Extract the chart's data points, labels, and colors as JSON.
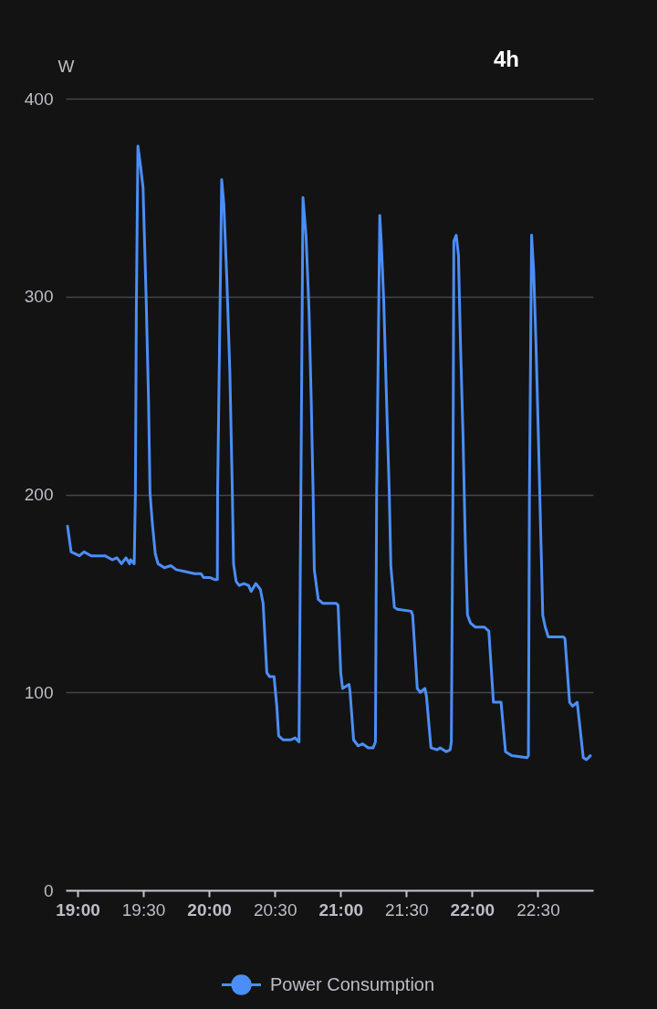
{
  "chart_data": {
    "type": "line",
    "ylabel": "W",
    "annotations": [
      "4h"
    ],
    "x": [
      18.924,
      18.951,
      19.014,
      19.049,
      19.104,
      19.208,
      19.264,
      19.299,
      19.334,
      19.368,
      19.396,
      19.403,
      19.431,
      19.44,
      19.447,
      19.459,
      19.479,
      19.498,
      19.521,
      19.54,
      19.551,
      19.568,
      19.591,
      19.612,
      19.66,
      19.709,
      19.751,
      19.82,
      19.889,
      19.938,
      19.959,
      20.008,
      20.042,
      20.063,
      20.065,
      20.096,
      20.112,
      20.135,
      20.158,
      20.177,
      20.186,
      20.206,
      20.23,
      20.265,
      20.3,
      20.32,
      20.355,
      20.39,
      20.411,
      20.439,
      20.459,
      20.494,
      20.515,
      20.529,
      20.564,
      20.619,
      20.654,
      20.684,
      20.698,
      20.714,
      20.737,
      20.76,
      20.777,
      20.791,
      20.8,
      20.83,
      20.864,
      20.911,
      20.967,
      20.981,
      21.001,
      21.015,
      21.064,
      21.071,
      21.099,
      21.133,
      21.168,
      21.21,
      21.247,
      21.265,
      21.274,
      21.298,
      21.309,
      21.328,
      21.351,
      21.37,
      21.382,
      21.409,
      21.432,
      21.537,
      21.548,
      21.583,
      21.606,
      21.641,
      21.653,
      21.687,
      21.733,
      21.757,
      21.803,
      21.833,
      21.842,
      21.854,
      21.861,
      21.879,
      21.896,
      21.912,
      21.931,
      21.946,
      21.953,
      21.965,
      21.988,
      22.023,
      22.092,
      22.127,
      22.162,
      22.22,
      22.254,
      22.301,
      22.417,
      22.428,
      22.436,
      22.452,
      22.468,
      22.486,
      22.504,
      22.521,
      22.528,
      22.537,
      22.556,
      22.579,
      22.626,
      22.695,
      22.706,
      22.741,
      22.764,
      22.799,
      22.845,
      22.869,
      22.899
    ],
    "series": [
      {
        "name": "Power Consumption",
        "color": "#4b8ef7",
        "values": [
          184,
          171,
          169,
          171,
          169,
          169,
          167,
          168,
          165,
          168,
          165,
          167,
          165,
          201,
          293,
          376,
          366,
          355,
          301,
          247,
          201,
          186,
          170,
          165,
          163,
          164,
          162,
          161,
          160,
          160,
          158,
          158,
          157,
          157,
          201,
          359,
          347,
          309,
          262,
          201,
          165,
          156,
          154,
          155,
          154,
          151,
          155,
          152,
          145,
          110,
          108,
          108,
          93,
          78,
          76,
          76,
          77,
          75,
          201,
          350,
          331,
          293,
          247,
          201,
          162,
          147,
          145,
          145,
          145,
          144,
          110,
          102,
          104,
          101,
          76,
          73,
          74,
          72,
          72,
          75,
          200,
          341,
          328,
          298,
          244,
          201,
          164,
          143,
          142,
          141,
          139,
          102,
          100,
          102,
          98,
          72,
          71,
          72,
          70,
          71,
          75,
          200,
          328,
          331,
          321,
          275,
          229,
          182,
          164,
          139,
          135,
          133,
          133,
          131,
          95,
          95,
          70,
          68,
          67,
          68,
          200,
          331,
          313,
          275,
          229,
          182,
          164,
          139,
          133,
          128,
          128,
          128,
          127,
          95,
          93,
          95,
          67,
          66,
          68
        ]
      }
    ],
    "xlim": [
      18.91,
      22.92
    ],
    "xticks": [
      {
        "value": 19,
        "label": "19:00"
      },
      {
        "value": 19.5,
        "label": "19:30"
      },
      {
        "value": 20,
        "label": "20:00"
      },
      {
        "value": 20.5,
        "label": "20:30"
      },
      {
        "value": 21,
        "label": "21:00"
      },
      {
        "value": 21.5,
        "label": "21:30"
      },
      {
        "value": 22,
        "label": "22:00"
      },
      {
        "value": 22.5,
        "label": "22:30"
      }
    ],
    "ylim": [
      0,
      400
    ],
    "yticks": [
      0,
      100,
      200,
      300,
      400
    ],
    "grid": "y",
    "legend": "bottom"
  }
}
